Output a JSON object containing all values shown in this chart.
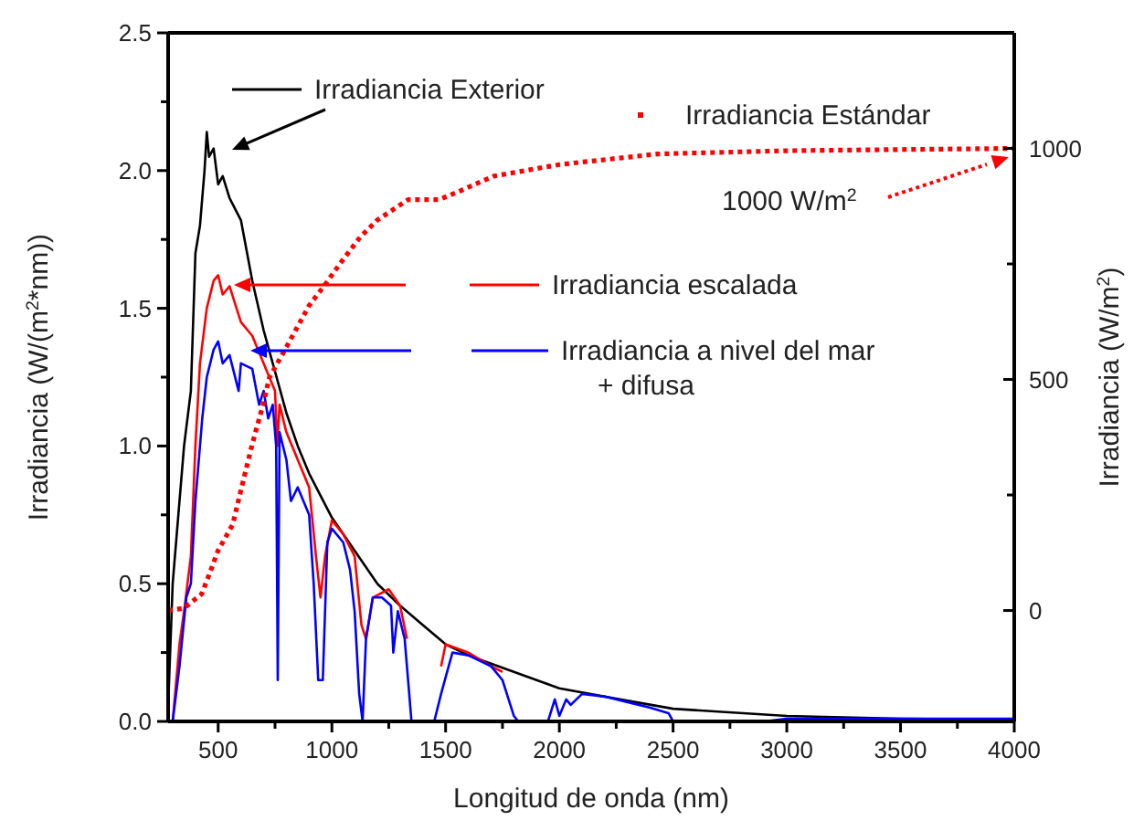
{
  "chart_data": {
    "type": "line",
    "xlabel": "Longitud de onda (nm)",
    "ylabel": "Irradiancia (W/(m$^{2}$*nm))",
    "y2label": "Irradiancia (W/m$^{2}$)",
    "xlim": [
      280,
      4000
    ],
    "xticks": [
      500,
      {
        "value": 750,
        "label": null
      },
      1000,
      {
        "value": 1250,
        "label": null
      },
      1500,
      {
        "value": 1750,
        "label": null
      },
      2000,
      {
        "value": 2250,
        "label": null
      },
      2500,
      {
        "value": 2750,
        "label": null
      },
      3000,
      {
        "value": 3250,
        "label": null
      },
      3500,
      {
        "value": 3750,
        "label": null
      },
      4000
    ],
    "ylim": [
      0,
      2.5
    ],
    "yticks": [
      {
        "value": 0,
        "label": "0.0"
      },
      {
        "value": 0.25,
        "label": null
      },
      {
        "value": 0.5,
        "label": "0.5"
      },
      {
        "value": 0.75,
        "label": null
      },
      {
        "value": 1,
        "label": "1.0"
      },
      {
        "value": 1.25,
        "label": null
      },
      {
        "value": 1.5,
        "label": "1.5"
      },
      {
        "value": 1.75,
        "label": null
      },
      {
        "value": 2,
        "label": "2.0"
      },
      {
        "value": 2.25,
        "label": null
      },
      {
        "value": 2.5,
        "label": "2.5"
      }
    ],
    "y2lim": [
      -240,
      1250
    ],
    "y2ticks": [
      0,
      {
        "value": 250,
        "label": null
      },
      500,
      {
        "value": 750,
        "label": null
      },
      1000
    ],
    "grid": false,
    "legend": "top",
    "annotations": [
      "1000 W/m$^{2}$"
    ],
    "series": [
      {
        "name": "Irradiancia Exterior",
        "color": "#000000",
        "x": [
          280,
          300,
          330,
          350,
          380,
          400,
          420,
          440,
          450,
          460,
          480,
          500,
          520,
          550,
          600,
          650,
          700,
          750,
          800,
          850,
          900,
          1000,
          1100,
          1200,
          1300,
          1400,
          1500,
          1600,
          1700,
          1800,
          2000,
          2200,
          2500,
          3000,
          3500,
          4000
        ],
        "values": [
          0.05,
          0.5,
          0.8,
          1.0,
          1.2,
          1.7,
          1.8,
          2.0,
          2.14,
          2.05,
          2.08,
          1.95,
          1.98,
          1.9,
          1.82,
          1.6,
          1.42,
          1.27,
          1.12,
          1.0,
          0.9,
          0.74,
          0.62,
          0.5,
          0.42,
          0.35,
          0.28,
          0.24,
          0.21,
          0.18,
          0.12,
          0.09,
          0.046,
          0.02,
          0.01,
          0.005
        ]
      },
      {
        "name": "Irradiancia escalada",
        "color": "#ff0000",
        "x": [
          300,
          330,
          350,
          380,
          400,
          420,
          450,
          480,
          500,
          520,
          550,
          600,
          650,
          700,
          750,
          760,
          770,
          800,
          850,
          900,
          930,
          950,
          970,
          1000,
          1050,
          1100,
          1130,
          1150,
          1180,
          1250,
          1300,
          1330,
          1400,
          1480,
          1500,
          1600,
          1700,
          1750
        ],
        "values": [
          0,
          0.28,
          0.4,
          0.6,
          1.0,
          1.3,
          1.5,
          1.6,
          1.62,
          1.55,
          1.58,
          1.45,
          1.4,
          1.3,
          1.2,
          1.0,
          1.15,
          1.05,
          0.95,
          0.85,
          0.6,
          0.45,
          0.6,
          0.73,
          0.68,
          0.6,
          0.35,
          0.3,
          0.45,
          0.48,
          0.42,
          0.3,
          null,
          0.2,
          0.28,
          0.25,
          0.2,
          0.18
        ]
      },
      {
        "name": "Irradiancia a nivel del mar + difusa",
        "color": "#0000ff",
        "x": [
          300,
          330,
          360,
          380,
          400,
          430,
          450,
          480,
          500,
          520,
          550,
          590,
          600,
          650,
          680,
          700,
          720,
          740,
          755,
          762,
          770,
          800,
          820,
          850,
          900,
          920,
          940,
          960,
          980,
          1000,
          1050,
          1080,
          1100,
          1120,
          1135,
          1150,
          1180,
          1220,
          1260,
          1270,
          1290,
          1320,
          1350,
          1450,
          1480,
          1530,
          1600,
          1700,
          1750,
          1800,
          1820,
          1950,
          1980,
          2000,
          2030,
          2050,
          2100,
          2200,
          2300,
          2400,
          2480,
          2500,
          2900,
          3000,
          3500,
          4000
        ],
        "values": [
          0,
          0.2,
          0.45,
          0.5,
          0.8,
          1.1,
          1.25,
          1.35,
          1.38,
          1.3,
          1.33,
          1.2,
          1.3,
          1.28,
          1.15,
          1.2,
          1.1,
          1.15,
          1.0,
          0.15,
          1.05,
          0.95,
          0.8,
          0.85,
          0.75,
          0.5,
          0.15,
          0.15,
          0.65,
          0.7,
          0.65,
          0.55,
          0.4,
          0.1,
          0,
          0.3,
          0.45,
          0.45,
          0.42,
          0.25,
          0.4,
          0.3,
          0,
          0,
          0.1,
          0.25,
          0.24,
          0.2,
          0.15,
          0.02,
          0,
          0,
          0.08,
          0.02,
          0.08,
          0.06,
          0.1,
          0.09,
          0.07,
          0.05,
          0.03,
          0,
          0,
          0.01,
          0.01,
          0.01
        ]
      },
      {
        "name": "Irradiancia Estándar",
        "color": "#ff0000",
        "axis": "y2",
        "line_style": "dotted",
        "x": [
          280,
          350,
          428,
          470,
          500,
          564,
          600,
          650,
          700,
          725,
          800,
          900,
          965,
          1050,
          1126,
          1200,
          1335,
          1470,
          1550,
          1712,
          2000,
          2434,
          3000,
          4000
        ],
        "values": [
          0,
          5,
          36,
          90,
          130,
          186,
          260,
          360,
          450,
          504,
          570,
          660,
          702,
          760,
          809,
          845,
          889,
          889,
          905,
          940,
          965,
          988,
          995,
          1000
        ]
      }
    ]
  }
}
